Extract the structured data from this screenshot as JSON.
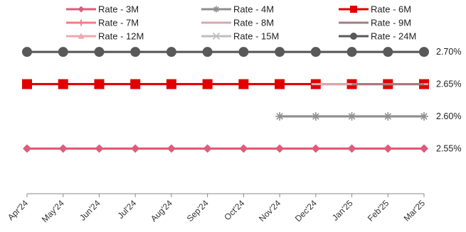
{
  "chart_data": {
    "type": "line",
    "categories": [
      "Apr'24",
      "May'24",
      "Jun'24",
      "Jul'24",
      "Aug'24",
      "Sep'24",
      "Oct'24",
      "Nov'24",
      "Dec'24",
      "Jan'25",
      "Feb'25",
      "Mar'25"
    ],
    "yticks": [
      "2.70%",
      "2.65%",
      "2.60%",
      "2.55%"
    ],
    "ylim": [
      2.48,
      2.72
    ],
    "grid": false,
    "legend_position": "top",
    "series": [
      {
        "name": "Rate - 3M",
        "color": "#E05A7A",
        "marker": "diamond",
        "values": [
          2.55,
          2.55,
          2.55,
          2.55,
          2.55,
          2.55,
          2.55,
          2.55,
          2.55,
          2.55,
          2.55,
          2.55
        ]
      },
      {
        "name": "Rate - 4M",
        "color": "#8F8F8F",
        "marker": "star",
        "values": [
          null,
          null,
          null,
          null,
          null,
          null,
          null,
          2.6,
          2.6,
          2.6,
          2.6,
          2.6
        ]
      },
      {
        "name": "Rate - 6M",
        "color": "#E10000",
        "marker": "square",
        "values": [
          2.65,
          2.65,
          2.65,
          2.65,
          2.65,
          2.65,
          2.65,
          2.65,
          2.65,
          2.65,
          2.65,
          2.65
        ]
      },
      {
        "name": "Rate - 7M",
        "color": "#F07C84",
        "marker": "plus",
        "values": [
          null,
          null,
          null,
          null,
          null,
          null,
          null,
          null,
          null,
          null,
          null,
          null
        ]
      },
      {
        "name": "Rate - 8M",
        "color": "#D8A8AC",
        "marker": "dash",
        "values": [
          null,
          null,
          null,
          null,
          null,
          null,
          null,
          null,
          2.65,
          2.65,
          2.65,
          2.65
        ]
      },
      {
        "name": "Rate - 9M",
        "color": "#A67C80",
        "marker": "none",
        "values": [
          null,
          null,
          null,
          null,
          null,
          null,
          null,
          null,
          null,
          2.65,
          2.65,
          2.65
        ]
      },
      {
        "name": "Rate - 12M",
        "color": "#F2A6AE",
        "marker": "triangle",
        "values": [
          null,
          null,
          null,
          null,
          null,
          null,
          null,
          null,
          null,
          null,
          null,
          null
        ]
      },
      {
        "name": "Rate - 15M",
        "color": "#BFBFBF",
        "marker": "x",
        "values": [
          null,
          null,
          null,
          null,
          null,
          null,
          null,
          null,
          null,
          null,
          null,
          null
        ]
      },
      {
        "name": "Rate - 24M",
        "color": "#595959",
        "marker": "circle",
        "values": [
          2.7,
          2.7,
          2.7,
          2.7,
          2.7,
          2.7,
          2.7,
          2.7,
          2.7,
          2.7,
          2.7,
          2.7
        ]
      }
    ]
  }
}
